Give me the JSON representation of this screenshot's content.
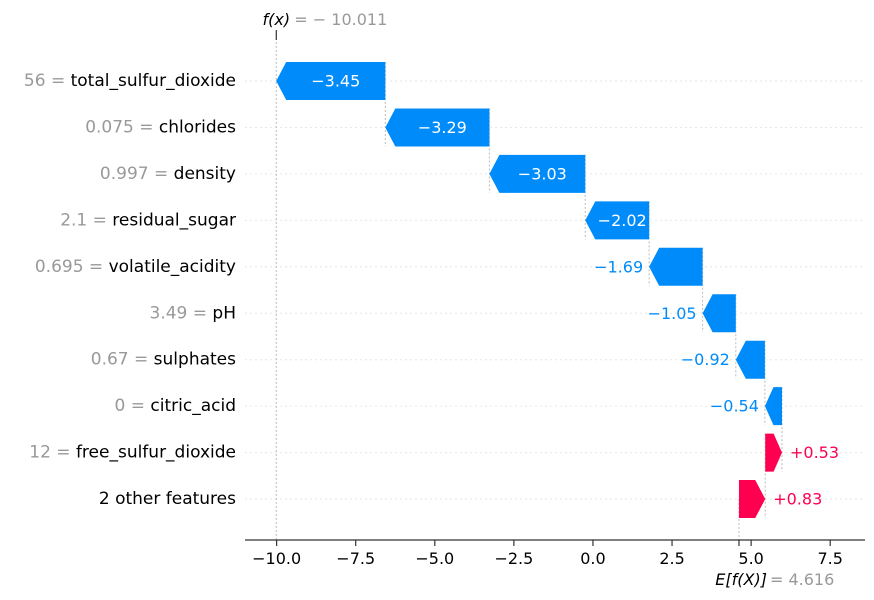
{
  "chart_data": {
    "type": "waterfall",
    "title": "",
    "xlabel": "",
    "ylabel": "",
    "fx_label": "f(x)",
    "fx_value": "= − 10.011",
    "base_label": "E[f(X)]",
    "base_value": "= 4.616",
    "base": 4.616,
    "fx": -10.011,
    "xlim": [
      -11.0,
      8.6
    ],
    "xticks": [
      -10.0,
      -7.5,
      -5.0,
      -2.5,
      0.0,
      2.5,
      5.0,
      7.5
    ],
    "xtick_labels": [
      "−10.0",
      "−7.5",
      "−5.0",
      "−2.5",
      "0.0",
      "2.5",
      "5.0",
      "7.5"
    ],
    "features": [
      {
        "value": "56",
        "name": "total_sulfur_dioxide",
        "contribution": -3.45,
        "label": "−3.45"
      },
      {
        "value": "0.075",
        "name": "chlorides",
        "contribution": -3.29,
        "label": "−3.29"
      },
      {
        "value": "0.997",
        "name": "density",
        "contribution": -3.03,
        "label": "−3.03"
      },
      {
        "value": "2.1",
        "name": "residual_sugar",
        "contribution": -2.02,
        "label": "−2.02"
      },
      {
        "value": "0.695",
        "name": "volatile_acidity",
        "contribution": -1.69,
        "label": "−1.69"
      },
      {
        "value": "3.49",
        "name": "pH",
        "contribution": -1.05,
        "label": "−1.05"
      },
      {
        "value": "0.67",
        "name": "sulphates",
        "contribution": -0.92,
        "label": "−0.92"
      },
      {
        "value": "0",
        "name": "citric_acid",
        "contribution": -0.54,
        "label": "−0.54"
      },
      {
        "value": "12",
        "name": "free_sulfur_dioxide",
        "contribution": 0.53,
        "label": "+0.53"
      },
      {
        "value": "",
        "name": "2 other features",
        "contribution": 0.83,
        "label": "+0.83"
      }
    ],
    "colors": {
      "negative": "#008bfb",
      "positive": "#ff0051",
      "value_gray": "#999999",
      "text": "#000000"
    }
  }
}
